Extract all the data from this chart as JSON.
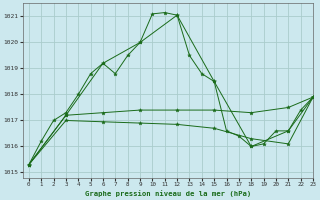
{
  "title": "Graphe pression niveau de la mer (hPa)",
  "background_color": "#cce8ee",
  "grid_color": "#aacccc",
  "line_color": "#1a6b1a",
  "xlim": [
    -0.5,
    23
  ],
  "ylim": [
    1014.8,
    1021.5
  ],
  "yticks": [
    1015,
    1016,
    1017,
    1018,
    1019,
    1020,
    1021
  ],
  "xticks": [
    0,
    1,
    2,
    3,
    4,
    5,
    6,
    7,
    8,
    9,
    10,
    11,
    12,
    13,
    14,
    15,
    16,
    17,
    18,
    19,
    20,
    21,
    22,
    23
  ],
  "series": [
    {
      "x": [
        0,
        1,
        2,
        3,
        4,
        5,
        6,
        7,
        8,
        9,
        10,
        11,
        12,
        13,
        14,
        15,
        16,
        17,
        18,
        19,
        20,
        21,
        22,
        23
      ],
      "y": [
        1015.3,
        1016.2,
        1017.0,
        1017.3,
        1018.0,
        1018.8,
        1019.2,
        1018.8,
        1019.5,
        1020.0,
        1021.1,
        1021.15,
        1021.05,
        1019.5,
        1018.8,
        1018.5,
        1016.6,
        1016.4,
        1016.0,
        1016.1,
        1016.6,
        1016.6,
        1017.4,
        1017.9
      ]
    },
    {
      "x": [
        0,
        3,
        6,
        9,
        12,
        15,
        18,
        21,
        23
      ],
      "y": [
        1015.3,
        1017.2,
        1019.2,
        1020.0,
        1021.05,
        1018.5,
        1016.0,
        1016.6,
        1017.9
      ]
    },
    {
      "x": [
        0,
        3,
        6,
        9,
        12,
        15,
        18,
        21,
        23
      ],
      "y": [
        1015.3,
        1017.0,
        1016.95,
        1016.9,
        1016.85,
        1016.7,
        1016.3,
        1016.1,
        1017.9
      ]
    },
    {
      "x": [
        0,
        3,
        6,
        9,
        12,
        15,
        18,
        21,
        23
      ],
      "y": [
        1015.3,
        1017.2,
        1017.3,
        1017.4,
        1017.4,
        1017.4,
        1017.3,
        1017.5,
        1017.9
      ]
    }
  ]
}
